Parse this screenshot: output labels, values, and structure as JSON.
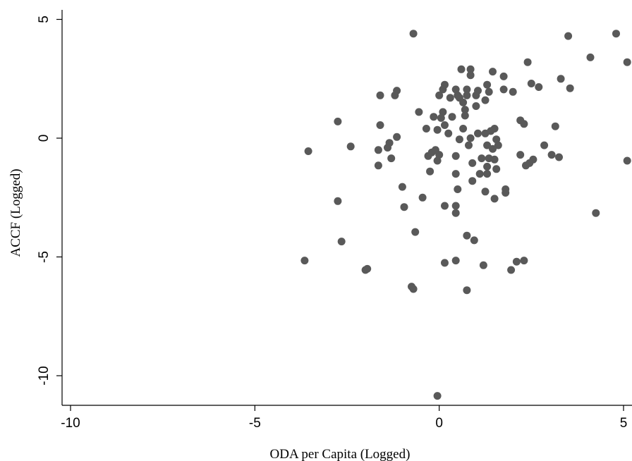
{
  "chart_data": {
    "type": "scatter",
    "title": "",
    "xlabel": "ODA per Capita (Logged)",
    "ylabel": "ACCF (Logged)",
    "xlim": [
      -10.5,
      5.2
    ],
    "ylim": [
      -11.2,
      5.5
    ],
    "xticks": [
      -10,
      -5,
      0,
      5
    ],
    "yticks": [
      5,
      0,
      -5,
      -10
    ],
    "xtick_labels": [
      "-10",
      "-5",
      "0",
      "5"
    ],
    "ytick_labels": [
      "5",
      "0",
      "-5",
      "-10"
    ],
    "grid": false,
    "legend": "none",
    "marker_color": "#595959",
    "series": [
      {
        "points": [
          [
            -0.7,
            4.4
          ],
          [
            3.5,
            4.3
          ],
          [
            4.8,
            4.4
          ],
          [
            4.1,
            3.4
          ],
          [
            5.1,
            3.2
          ],
          [
            2.4,
            3.2
          ],
          [
            3.3,
            2.5
          ],
          [
            3.55,
            2.1
          ],
          [
            2.7,
            2.15
          ],
          [
            2.5,
            2.3
          ],
          [
            1.75,
            2.6
          ],
          [
            1.45,
            2.8
          ],
          [
            0.85,
            2.9
          ],
          [
            0.6,
            2.9
          ],
          [
            0.85,
            2.65
          ],
          [
            0.15,
            2.25
          ],
          [
            0.1,
            2.05
          ],
          [
            0.45,
            2.05
          ],
          [
            0.75,
            2.05
          ],
          [
            1.05,
            2.0
          ],
          [
            1.35,
            1.95
          ],
          [
            1.75,
            2.05
          ],
          [
            2.0,
            1.95
          ],
          [
            1.3,
            2.25
          ],
          [
            -1.15,
            2.0
          ],
          [
            -1.6,
            1.8
          ],
          [
            -1.2,
            1.8
          ],
          [
            0.5,
            1.8
          ],
          [
            0.75,
            1.8
          ],
          [
            1.0,
            1.8
          ],
          [
            0.3,
            1.7
          ],
          [
            0.55,
            1.7
          ],
          [
            1.25,
            1.6
          ],
          [
            0.0,
            1.8
          ],
          [
            0.65,
            1.5
          ],
          [
            1.0,
            1.35
          ],
          [
            0.7,
            1.2
          ],
          [
            -0.55,
            1.1
          ],
          [
            0.1,
            1.1
          ],
          [
            0.35,
            0.9
          ],
          [
            -0.15,
            0.9
          ],
          [
            0.05,
            0.85
          ],
          [
            0.7,
            0.95
          ],
          [
            2.2,
            0.75
          ],
          [
            2.3,
            0.6
          ],
          [
            3.15,
            0.5
          ],
          [
            -2.75,
            0.7
          ],
          [
            -1.6,
            0.55
          ],
          [
            0.15,
            0.55
          ],
          [
            -0.35,
            0.4
          ],
          [
            -0.05,
            0.35
          ],
          [
            0.65,
            0.4
          ],
          [
            1.5,
            0.4
          ],
          [
            0.25,
            0.2
          ],
          [
            1.05,
            0.2
          ],
          [
            1.25,
            0.2
          ],
          [
            1.4,
            0.3
          ],
          [
            -1.15,
            0.05
          ],
          [
            0.55,
            -0.05
          ],
          [
            0.85,
            0.0
          ],
          [
            1.55,
            -0.05
          ],
          [
            -1.35,
            -0.2
          ],
          [
            -2.4,
            -0.35
          ],
          [
            -1.4,
            -0.4
          ],
          [
            -1.65,
            -0.5
          ],
          [
            -3.55,
            -0.55
          ],
          [
            0.8,
            -0.3
          ],
          [
            1.6,
            -0.3
          ],
          [
            2.85,
            -0.3
          ],
          [
            1.3,
            -0.3
          ],
          [
            1.45,
            -0.45
          ],
          [
            3.05,
            -0.7
          ],
          [
            -0.2,
            -0.6
          ],
          [
            -0.1,
            -0.5
          ],
          [
            0.0,
            -0.7
          ],
          [
            0.45,
            -0.75
          ],
          [
            1.15,
            -0.85
          ],
          [
            1.35,
            -0.85
          ],
          [
            1.5,
            -0.9
          ],
          [
            2.2,
            -0.7
          ],
          [
            -0.3,
            -0.75
          ],
          [
            2.55,
            -0.9
          ],
          [
            3.25,
            -0.8
          ],
          [
            5.1,
            -0.95
          ],
          [
            -0.05,
            -0.95
          ],
          [
            0.9,
            -1.05
          ],
          [
            2.35,
            -1.15
          ],
          [
            2.45,
            -1.05
          ],
          [
            1.3,
            -1.2
          ],
          [
            -1.65,
            -1.15
          ],
          [
            -1.3,
            -0.85
          ],
          [
            1.55,
            -1.3
          ],
          [
            -0.25,
            -1.4
          ],
          [
            0.45,
            -1.5
          ],
          [
            1.1,
            -1.5
          ],
          [
            1.3,
            -1.5
          ],
          [
            0.9,
            -1.8
          ],
          [
            -1.0,
            -2.05
          ],
          [
            0.5,
            -2.15
          ],
          [
            1.8,
            -2.15
          ],
          [
            1.8,
            -2.3
          ],
          [
            1.25,
            -2.25
          ],
          [
            -0.45,
            -2.5
          ],
          [
            1.5,
            -2.55
          ],
          [
            -2.75,
            -2.65
          ],
          [
            -0.95,
            -2.9
          ],
          [
            0.15,
            -2.85
          ],
          [
            0.45,
            -2.85
          ],
          [
            0.45,
            -3.15
          ],
          [
            4.25,
            -3.15
          ],
          [
            -0.65,
            -3.95
          ],
          [
            0.75,
            -4.1
          ],
          [
            0.95,
            -4.3
          ],
          [
            -2.65,
            -4.35
          ],
          [
            -3.65,
            -5.15
          ],
          [
            0.45,
            -5.15
          ],
          [
            0.15,
            -5.25
          ],
          [
            1.2,
            -5.35
          ],
          [
            2.1,
            -5.2
          ],
          [
            2.3,
            -5.15
          ],
          [
            -2.0,
            -5.55
          ],
          [
            -1.95,
            -5.5
          ],
          [
            1.95,
            -5.55
          ],
          [
            -0.75,
            -6.25
          ],
          [
            -0.7,
            -6.35
          ],
          [
            0.75,
            -6.4
          ],
          [
            -0.05,
            -10.85
          ]
        ]
      }
    ]
  }
}
